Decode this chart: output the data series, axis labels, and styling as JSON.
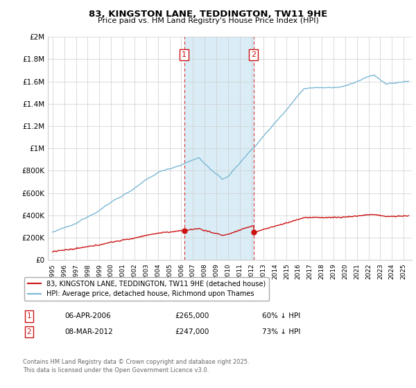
{
  "title": "83, KINGSTON LANE, TEDDINGTON, TW11 9HE",
  "subtitle": "Price paid vs. HM Land Registry's House Price Index (HPI)",
  "ylabel_ticks": [
    "£0",
    "£200K",
    "£400K",
    "£600K",
    "£800K",
    "£1M",
    "£1.2M",
    "£1.4M",
    "£1.6M",
    "£1.8M",
    "£2M"
  ],
  "ytick_values": [
    0,
    200000,
    400000,
    600000,
    800000,
    1000000,
    1200000,
    1400000,
    1600000,
    1800000,
    2000000
  ],
  "ylim": [
    0,
    2000000
  ],
  "hpi_color": "#7ab8d4",
  "price_color": "#cc1111",
  "sale1_year": 2006.25,
  "sale2_year": 2012.17,
  "sale1_price": 265000,
  "sale2_price": 247000,
  "shade_color": "#d4eaf5",
  "legend_label_price": "83, KINGSTON LANE, TEDDINGTON, TW11 9HE (detached house)",
  "legend_label_hpi": "HPI: Average price, detached house, Richmond upon Thames",
  "footnote1_date": "06-APR-2006",
  "footnote1_price": "£265,000",
  "footnote1_pct": "60% ↓ HPI",
  "footnote2_date": "08-MAR-2012",
  "footnote2_price": "£247,000",
  "footnote2_pct": "73% ↓ HPI",
  "footer_text": "Contains HM Land Registry data © Crown copyright and database right 2025.\nThis data is licensed under the Open Government Licence v3.0.",
  "background_color": "#ffffff",
  "grid_color": "#cccccc",
  "xstart": 1995,
  "xend": 2025
}
